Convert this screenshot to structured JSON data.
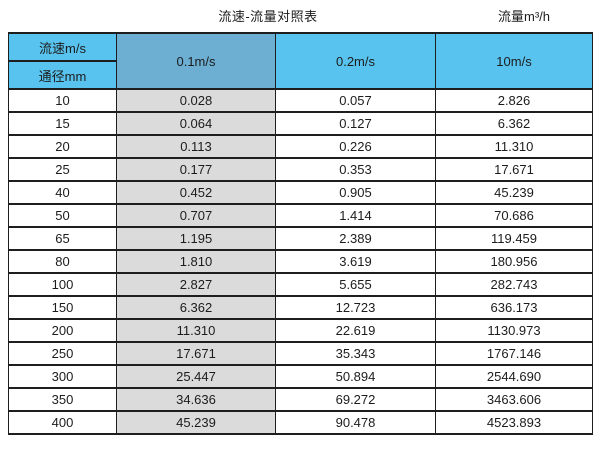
{
  "page": {
    "title": "流速-流量对照表",
    "unit_label": "流量m³/h"
  },
  "table": {
    "header": {
      "top_left": "流速m/s",
      "bottom_left": "通径mm",
      "columns": [
        "0.1m/s",
        "0.2m/s",
        "10m/s"
      ]
    },
    "rows": [
      [
        "10",
        "0.028",
        "0.057",
        "2.826"
      ],
      [
        "15",
        "0.064",
        "0.127",
        "6.362"
      ],
      [
        "20",
        "0.113",
        "0.226",
        "11.310"
      ],
      [
        "25",
        "0.177",
        "0.353",
        "17.671"
      ],
      [
        "40",
        "0.452",
        "0.905",
        "45.239"
      ],
      [
        "50",
        "0.707",
        "1.414",
        "70.686"
      ],
      [
        "65",
        "1.195",
        "2.389",
        "119.459"
      ],
      [
        "80",
        "1.810",
        "3.619",
        "180.956"
      ],
      [
        "100",
        "2.827",
        "5.655",
        "282.743"
      ],
      [
        "150",
        "6.362",
        "12.723",
        "636.173"
      ],
      [
        "200",
        "11.310",
        "22.619",
        "1130.973"
      ],
      [
        "250",
        "17.671",
        "35.343",
        "1767.146"
      ],
      [
        "300",
        "25.447",
        "50.894",
        "2544.690"
      ],
      [
        "350",
        "34.636",
        "69.272",
        "3463.606"
      ],
      [
        "400",
        "45.239",
        "90.478",
        "4523.893"
      ]
    ]
  },
  "colors": {
    "header_blue": "#58c3ee",
    "header_dark_blue": "#6dafd3",
    "gray_column": "#dbdbdb",
    "border": "#1e1e1e",
    "cell_white": "#ffffff"
  }
}
